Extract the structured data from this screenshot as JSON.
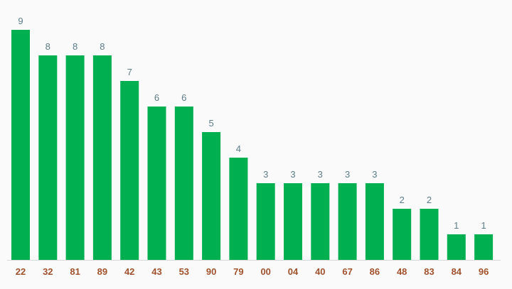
{
  "chart_data": {
    "type": "bar",
    "categories": [
      "22",
      "32",
      "81",
      "89",
      "42",
      "43",
      "53",
      "90",
      "79",
      "00",
      "04",
      "40",
      "67",
      "86",
      "48",
      "83",
      "84",
      "96"
    ],
    "series": [
      {
        "values": [
          9,
          8,
          8,
          8,
          7,
          6,
          6,
          5,
          4,
          3,
          3,
          3,
          3,
          3,
          2,
          2,
          1,
          1
        ]
      }
    ],
    "ylim": [
      0,
      9
    ],
    "grid": false,
    "legend": "none",
    "bar_color": "#00b050",
    "value_label_color": "#5b7d87",
    "tick_label_color": "#a0522d",
    "axis_color": "#d9d9d9"
  }
}
